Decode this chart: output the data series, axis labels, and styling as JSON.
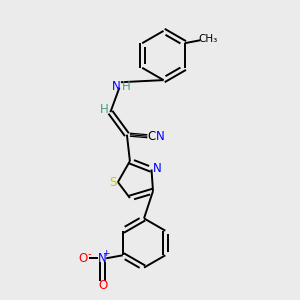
{
  "bg_color": "#ebebeb",
  "bond_color": "#000000",
  "atom_colors": {
    "N": "#0000ff",
    "S": "#cccc00",
    "O": "#ff0000",
    "C": "#000000",
    "H": "#4a9a8a"
  },
  "lw": 1.4,
  "off": 0.08
}
